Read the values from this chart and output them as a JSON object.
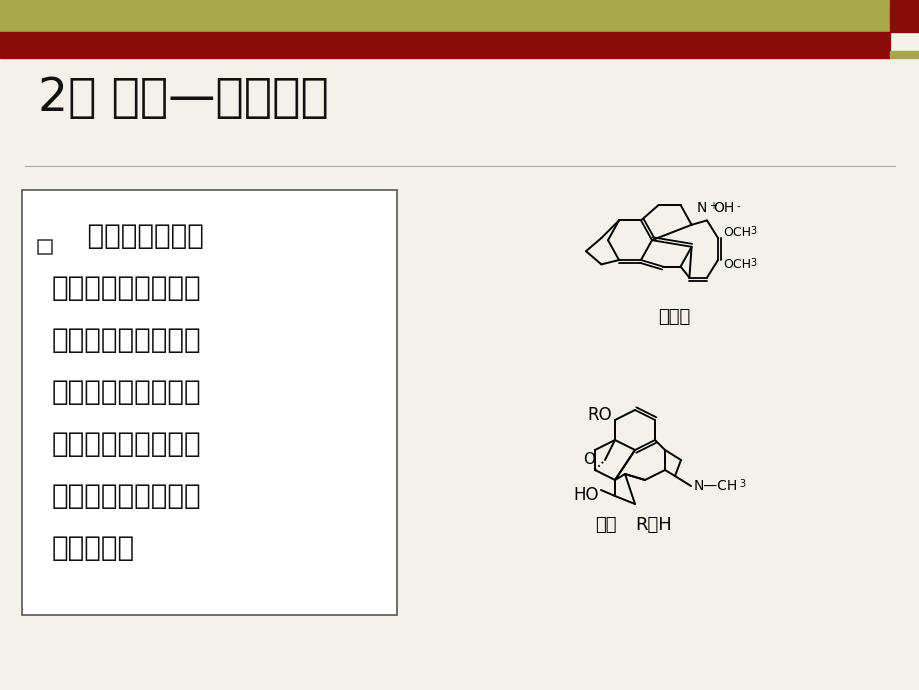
{
  "bg_color": "#f2f2ea",
  "header_olive_color": "#a8a84a",
  "header_red_color": "#8b0a0a",
  "title": "2、 成盐—与无机酸",
  "title_fontsize": 34,
  "title_color": "#111111",
  "bullet_lines": [
    "    有少数生物碑是",
    "与无机酸结合成盐存",
    "在，如小跼碑以盐酸",
    "盐存在于黄连及多种",
    "小跼科植物中；鸦片",
    "中的吁啊以硫酸盐形",
    "式存在等。"
  ],
  "bullet_fontsize": 20,
  "chem1_label": "小跼碑",
  "chem2_label1": "吁啊",
  "chem2_label2": "R＝H"
}
